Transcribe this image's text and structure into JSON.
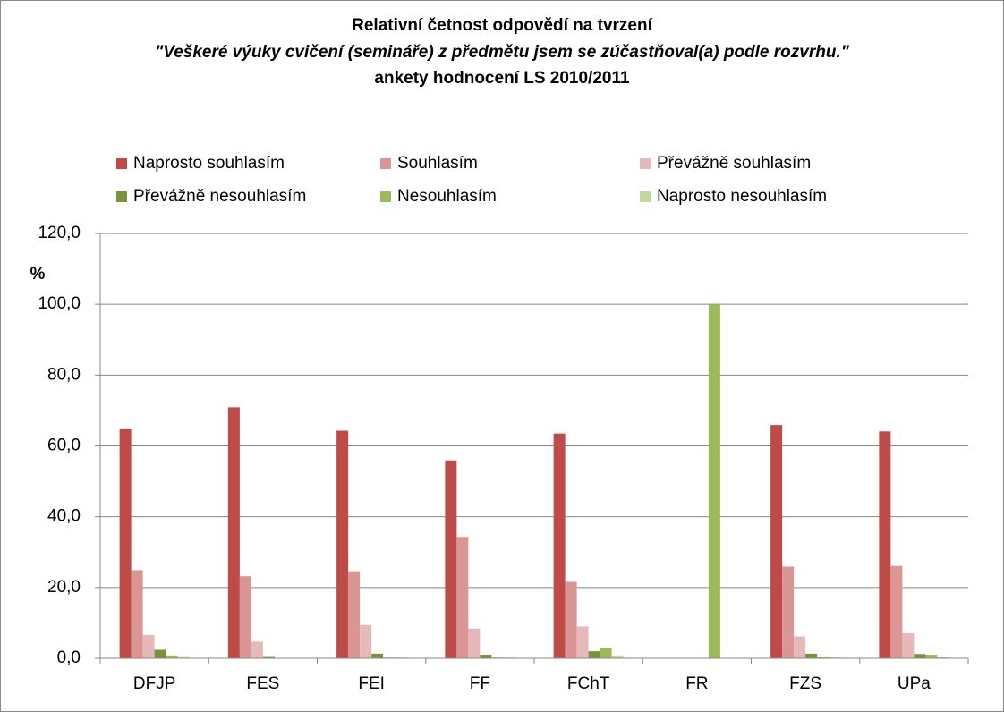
{
  "chart_data": {
    "type": "bar",
    "title": "Relativní četnost odpovědí na tvrzení",
    "subtitle": "\"Veškeré výuky cvičení (semináře) z předmětu jsem se zúčastňoval(a) podle rozvrhu.\"",
    "caption": "ankety hodnocení LS 2010/2011",
    "ylabel": "%",
    "categories": [
      "DFJP",
      "FES",
      "FEI",
      "FF",
      "FChT",
      "FR",
      "FZS",
      "UPa"
    ],
    "series": [
      {
        "name": "Naprosto souhlasím",
        "color": "#be4b48",
        "values": [
          64.7,
          70.9,
          64.3,
          55.9,
          63.5,
          0,
          65.9,
          64.1
        ]
      },
      {
        "name": "Souhlasím",
        "color": "#d99694",
        "values": [
          24.9,
          23.2,
          24.6,
          34.3,
          21.6,
          0,
          25.9,
          26.1
        ]
      },
      {
        "name": "Převážně souhlasím",
        "color": "#e6b9b8",
        "values": [
          6.6,
          4.7,
          9.4,
          8.4,
          9.0,
          0,
          6.2,
          7.1
        ]
      },
      {
        "name": "Převážně nesouhlasím",
        "color": "#77933c",
        "values": [
          2.4,
          0.6,
          1.3,
          1.0,
          2.0,
          0,
          1.3,
          1.2
        ]
      },
      {
        "name": "Nesouhlasím",
        "color": "#9bbb59",
        "values": [
          0.8,
          0,
          0.2,
          0.2,
          3.0,
          100,
          0.5,
          1.0
        ]
      },
      {
        "name": "Naprosto nesouhlasím",
        "color": "#c3d69b",
        "values": [
          0.6,
          0,
          0.2,
          0.2,
          0.8,
          0,
          0.2,
          0.3
        ]
      }
    ],
    "ylim": [
      0,
      120
    ],
    "yticks": [
      {
        "value": 0,
        "label": "0,0"
      },
      {
        "value": 20,
        "label": "20,0"
      },
      {
        "value": 40,
        "label": "40,0"
      },
      {
        "value": 60,
        "label": "60,0"
      },
      {
        "value": 80,
        "label": "80,0"
      },
      {
        "value": 100,
        "label": "100,0"
      },
      {
        "value": 120,
        "label": "120,0"
      }
    ],
    "grid": true
  }
}
